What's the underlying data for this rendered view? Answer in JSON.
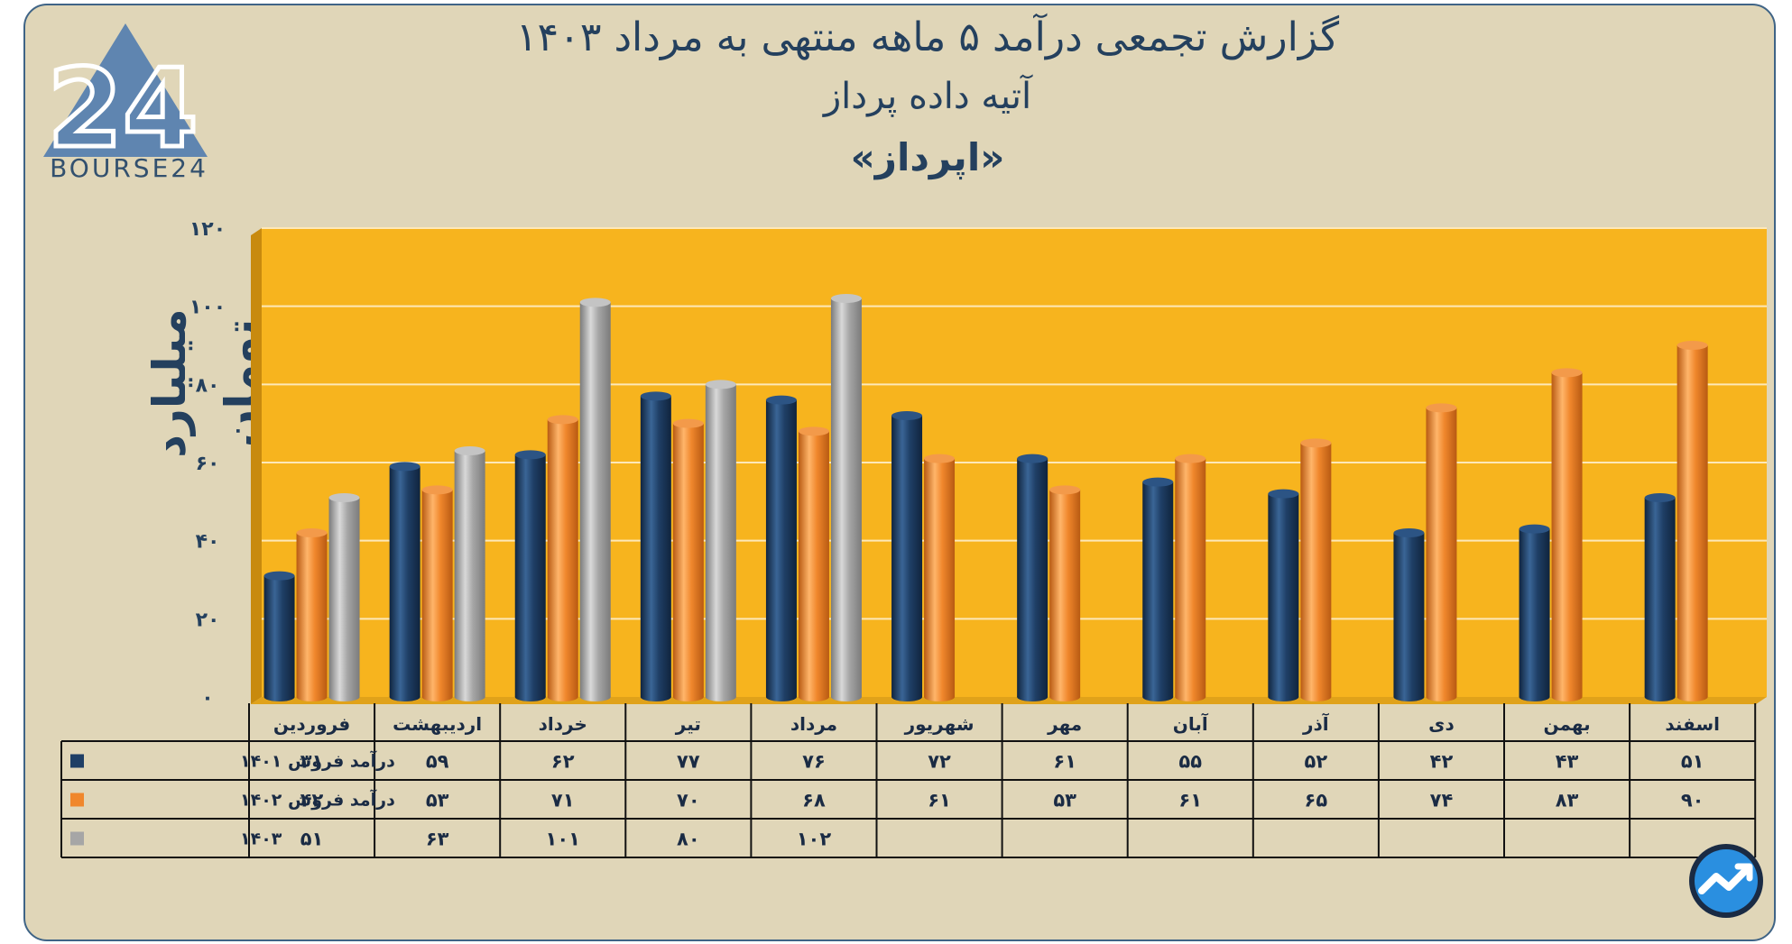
{
  "title": {
    "line1": "گزارش تجمعی درآمد ۵ ماهه منتهی به مرداد ۱۴۰۳",
    "line2": "آتیه داده پرداز",
    "line3": "«اپرداز»"
  },
  "logo": {
    "text": "BOURSE24",
    "icon": "bourse24-logo",
    "mark": "24"
  },
  "brand_icon": "trend-chart-icon",
  "colors": {
    "background": "#e0d6b8",
    "plot_background": "#f7b41e",
    "series_1401": "#1f3f66",
    "series_1402": "#f0872c",
    "series_1403": "#a6a6a6",
    "text": "#24405e"
  },
  "chart_data": {
    "type": "bar",
    "ylabel": "میلیارد تومان",
    "ylim": [
      0,
      120
    ],
    "yticks": [
      "۰",
      "۲۰",
      "۴۰",
      "۶۰",
      "۸۰",
      "۱۰۰",
      "۱۲۰"
    ],
    "ytick_values": [
      0,
      20,
      40,
      60,
      80,
      100,
      120
    ],
    "grid": true,
    "categories": [
      "فروردین",
      "اردیبهشت",
      "خرداد",
      "تیر",
      "مرداد",
      "شهریور",
      "مهر",
      "آبان",
      "آذر",
      "دی",
      "بهمن",
      "اسفند"
    ],
    "series": [
      {
        "name": "درآمد فروش ۱۴۰۱",
        "color": "#1f3f66",
        "values": [
          31,
          59,
          62,
          77,
          76,
          72,
          61,
          55,
          52,
          42,
          43,
          51
        ],
        "labels": [
          "۳۱",
          "۵۹",
          "۶۲",
          "۷۷",
          "۷۶",
          "۷۲",
          "۶۱",
          "۵۵",
          "۵۲",
          "۴۲",
          "۴۳",
          "۵۱"
        ]
      },
      {
        "name": "درآمد فروش ۱۴۰۲",
        "color": "#f0872c",
        "values": [
          42,
          53,
          71,
          70,
          68,
          61,
          53,
          61,
          65,
          74,
          83,
          90
        ],
        "labels": [
          "۴۲",
          "۵۳",
          "۷۱",
          "۷۰",
          "۶۸",
          "۶۱",
          "۵۳",
          "۶۱",
          "۶۵",
          "۷۴",
          "۸۳",
          "۹۰"
        ]
      },
      {
        "name": "۱۴۰۳",
        "color": "#a6a6a6",
        "values": [
          51,
          63,
          101,
          80,
          102,
          null,
          null,
          null,
          null,
          null,
          null,
          null
        ],
        "labels": [
          "۵۱",
          "۶۳",
          "۱۰۱",
          "۸۰",
          "۱۰۲",
          "",
          "",
          "",
          "",
          "",
          "",
          ""
        ]
      }
    ]
  }
}
